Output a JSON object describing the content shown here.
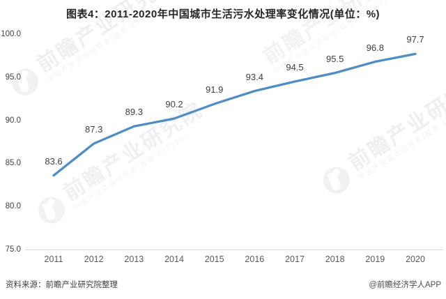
{
  "title": "图表4：2011-2020年中国城市生活污水处理率变化情况(单位：%)",
  "chart_data": {
    "type": "line",
    "title": "图表4：2011-2020年中国城市生活污水处理率变化情况(单位：%)",
    "categories": [
      "2011",
      "2012",
      "2013",
      "2014",
      "2015",
      "2016",
      "2017",
      "2018",
      "2019",
      "2020"
    ],
    "values": [
      83.6,
      87.3,
      89.3,
      90.2,
      91.9,
      93.4,
      94.5,
      95.5,
      96.8,
      97.7
    ],
    "unit": "%",
    "xlabel": "",
    "ylabel": "",
    "ylim": [
      75,
      100
    ],
    "yticks": [
      75,
      80,
      85,
      90,
      95,
      100
    ],
    "ytick_format_decimals": 1,
    "grid": false,
    "legend_position": "none",
    "data_labels_shown": true,
    "line_color": "#4f8dc5",
    "axis_color": "#d9d9d9"
  },
  "footer": {
    "source": "资料来源：前瞻产业研究院整理",
    "credit": "@前瞻经济学人APP"
  },
  "watermark": {
    "brand": "前瞻产业研究院",
    "tagline": "中国产业咨询领导者(股票:839599)"
  }
}
